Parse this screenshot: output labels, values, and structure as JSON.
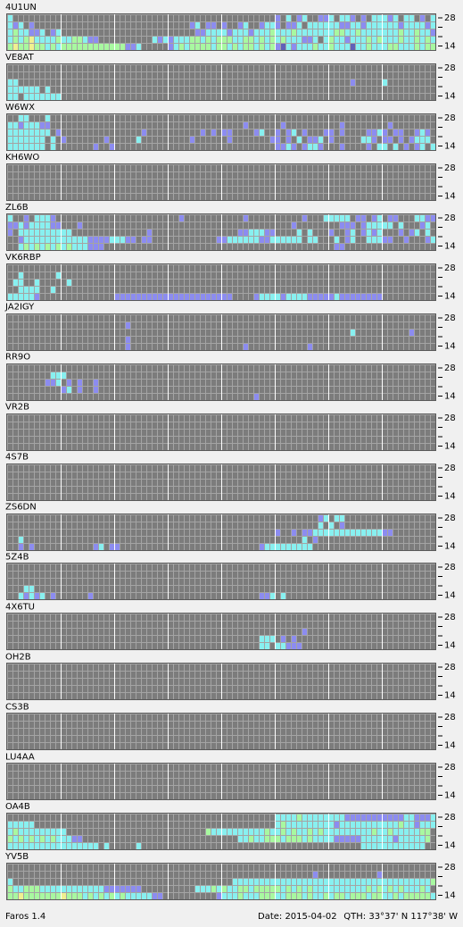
{
  "app": {
    "name": "Faros 1.4",
    "date": "Date: 2015-04-02",
    "qth": "QTH: 33°37' N  117°38' W"
  },
  "band_labels": [
    "28",
    "14"
  ],
  "legend": {
    "a": "#8c8cf0",
    "b": "#88f0f0",
    "c": "#a8f8a0",
    "d": "#f0f090",
    "e": "#6060b8"
  },
  "panels": [
    {
      "callsign": "4U1UN",
      "rows": [
        "b.................................................a.b.ab..aab.bba.a.bbbab.bb.a.b",
        "bab.a.............................ab.aa.a..ab..abba.aab.bbbbbbaabbabbbbbbabbbbab",
        "bcbbaab.ab.........................aabbbbabbbabbbcbbbcbbbbbbbccbbcbbbbbbbcbbcbba",
        "bcbcdbbbbcbbccbaa..........bababbbccbcbcccbbccbcbcbcbbbaab.bcbbabbbcbcbbbcbbcbcb",
        "cdccdccbcbccccccccccccaab.....abcbccccbccbcbccbcbcaebabbbcbbcbbbebbcbbbccbbbcbcc"
      ]
    },
    {
      "callsign": "VE8AT",
      "rows": [
        "",
        "",
        "bb..............................................................a.....b",
        "bbbbbb.b",
        "bb.bbbbbbb"
      ]
    },
    {
      "callsign": "W6WX",
      "rows": [
        "..bb...b",
        "bbabbbaa....................................a......a..........a........a",
        "bbbbbbbb.a...............a..........a.a.aa....ab..a.ab.a...aa.a....aaba.aa..aba",
        "bbbbbbb.b.a.......a.....b.........a......a.......aa.a.b.aab.a.....bba.aa.a.abbb",
        "bbbbbbb.b.......a..a..............................aaba.abba...a....a.bb.b.a.ab.b"
      ]
    },
    {
      "callsign": "KH6WO",
      "rows": []
    },
    {
      "callsign": "ZL6B",
      "rows": [
        "b..a.bbba.......................a...........a..........a...bbbbb.aa.ab.aa...bbaa",
        "aababbbbaa...a.......................................a........aaa.abbbbb.b...ab",
        "a.bbbbbbbbbb..............a................aabbbaa....b.b...a..ab.abab...a.ab.b",
        "..abbbbbbbbbbbbaaaabbbaa.aa............aabbbbbbaabbbbbb.bb...b.ab..bbbaa..a...ab",
        "..bcbcbcbcbcbbbaaa...........................................aa"
      ]
    },
    {
      "callsign": "VK6RBP",
      "rows": [
        "",
        "..b......b",
        ".bb..b.....b",
        "..bbbb..b",
        "bbbbba..............aaaaaaaaaaaaaaaaaaaaaa....abbbbabbbbaaaaabaaaaaaaa"
      ]
    },
    {
      "callsign": "JA2IGY",
      "rows": [
        "",
        "......................a",
        "................................................................b..........a",
        "......................a",
        "......................a.....................a...........a"
      ]
    },
    {
      "callsign": "RR9O",
      "rows": [
        "",
        "........bbb",
        ".......aab.a.a..a",
        "..........ab.a..a",
        "..............................................a"
      ]
    },
    {
      "callsign": "VR2B",
      "rows": []
    },
    {
      "callsign": "4S7B",
      "rows": []
    },
    {
      "callsign": "ZS6DN",
      "rows": [
        "..........................................................ab.bb",
        "..........................................................b.b.a",
        "..................................................a..a.aabbbbbbbbbbbbbaa",
        "..b....................................................b.a",
        "..a.a...........ab.aa..........................abbbbbbbbb"
      ]
    },
    {
      "callsign": "5Z4B",
      "rows": [
        "",
        "",
        "",
        "...bb",
        "..babab.a......a...............................aab.b"
      ]
    },
    {
      "callsign": "4X6TU",
      "rows": [
        "",
        "",
        ".......................................................a",
        "...............................................bbb.a.a",
        "...............................................bb.bbaaa"
      ]
    },
    {
      "callsign": "OH2B",
      "rows": []
    },
    {
      "callsign": "CS3B",
      "rows": []
    },
    {
      "callsign": "LU4AA",
      "rows": []
    },
    {
      "callsign": "OA4B",
      "rows": [
        "..................................................bbbbcbbbbbbbbaaaaaaaaaaabbaaab",
        "bbbbb.............................................bcbbbbbbbbbabbbbbbbbbbbcbbabbb",
        "bcbbbbbbbbb..........................cbbbbbbbbbbcbbcbcbbcbcbbbbbbbbbcbbcbbbbbcc",
        "cbcbcbcbcbbbaa.............................bbcbbcccbcccbcbbbbaaaaabbbbbbabbbbbc",
        "bbbbbbbbbbbbbbbbb.b.....b.........................................bbbbbbbbbbbb"
      ]
    },
    {
      "callsign": "YV5B",
      "rows": [
        "",
        ".........................................................a...........a",
        "b.........................................bbbbbbbbbbbbbbbbbbbbbbbbbbbbbbbbbbbbbc",
        "cbbcccbbbbbbbbbbbbaaaaaaa..........bbbcbcbbccbcccccbcbcbcbbbbbbbbbbcbcbcbcbbbcb",
        "ccdcccccccdcccbcbcbcbcbbbbbaa..........abbbcbbbcccbbcccbcbbcbccbcccbccbbcbcccccb"
      ]
    }
  ]
}
